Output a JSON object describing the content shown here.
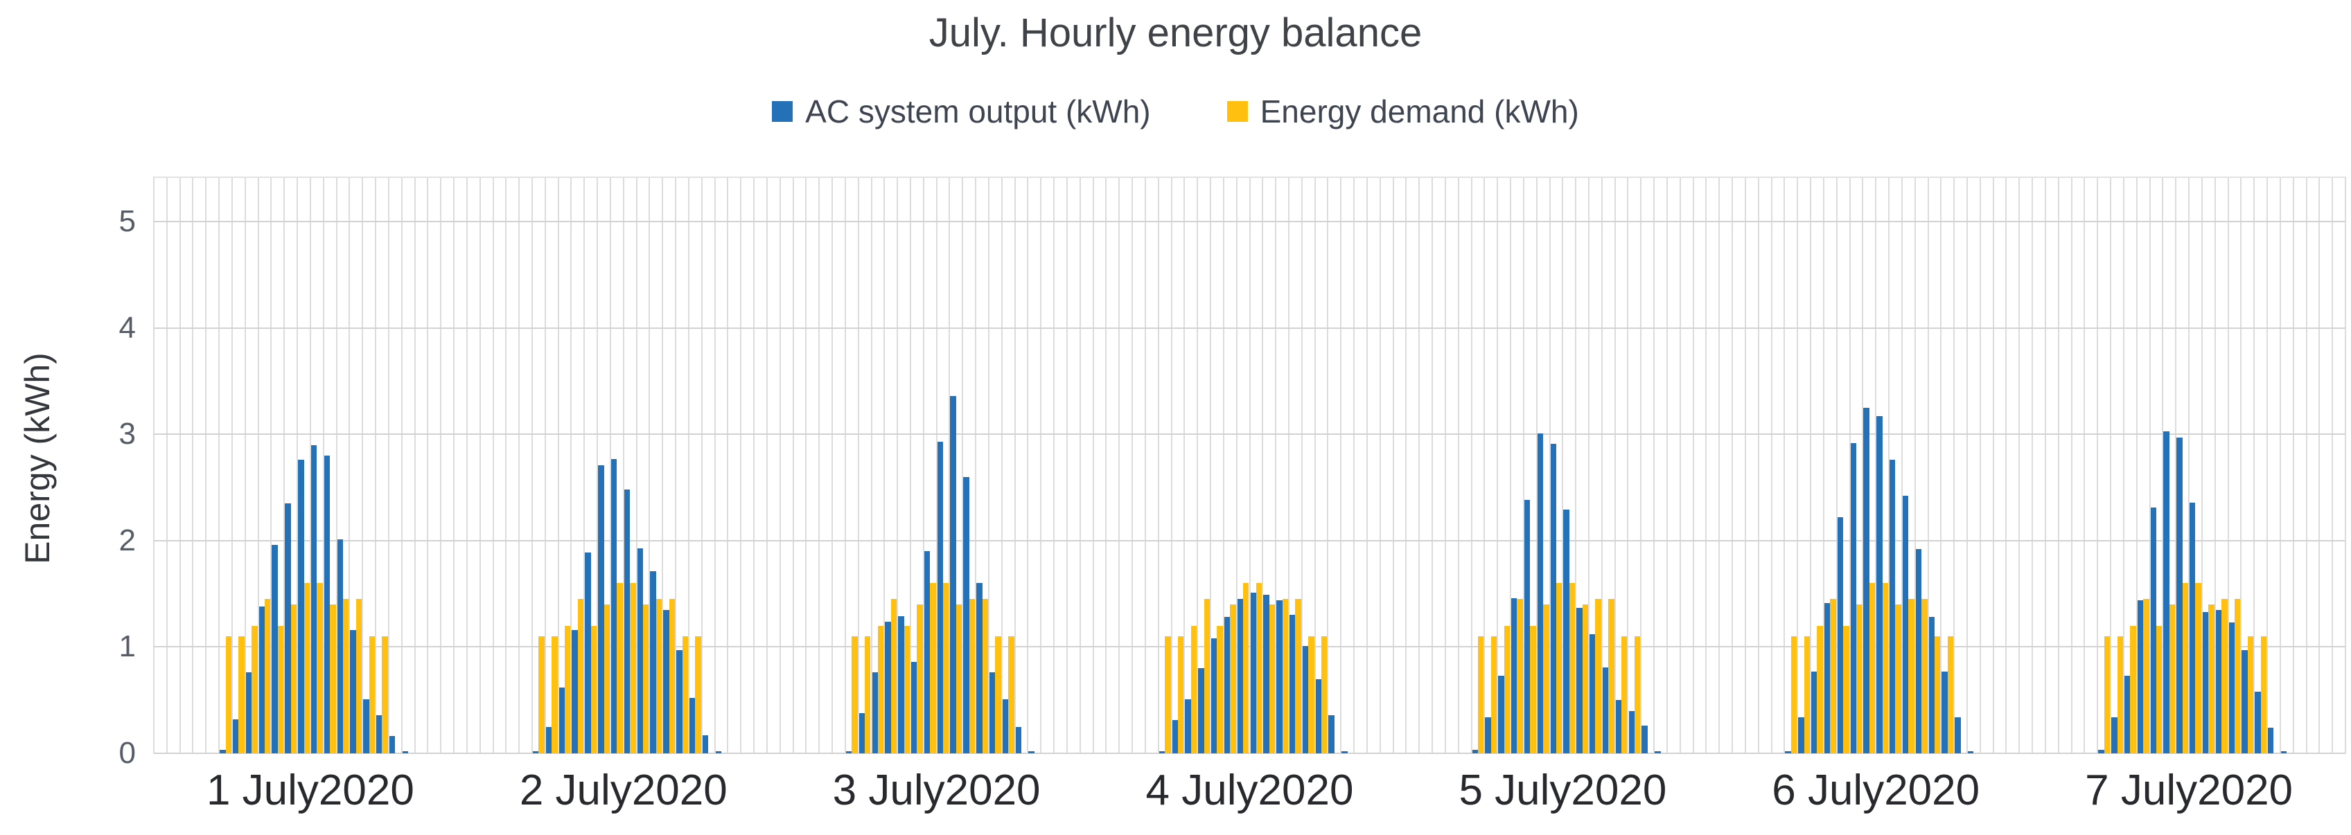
{
  "page": {
    "background": "#FFFFFF"
  },
  "chart": {
    "title": "July. Hourly energy balance",
    "legend": {
      "items": [
        {
          "label": "AC system output (kWh)",
          "color": "#2471B8"
        },
        {
          "label": "Energy demand (kWh)",
          "color": "#FFC010"
        }
      ]
    },
    "y_axis": {
      "title": "Energy (kWh)",
      "tick_labels": [
        "0",
        "1",
        "2",
        "3",
        "4",
        "5"
      ]
    },
    "x_axis": {
      "labels": [
        "1 July2020",
        "2 July2020",
        "3 July2020",
        "4 July2020",
        "5 July2020",
        "6 July2020",
        "7 July2020"
      ]
    }
  },
  "chart_data": {
    "type": "bar",
    "title": "July. Hourly energy balance",
    "xlabel": "",
    "ylabel": "Energy (kWh)",
    "ylim": [
      0,
      5.42
    ],
    "y_ticks": [
      0,
      1,
      2,
      3,
      4,
      5
    ],
    "grid": {
      "vertical": "one line per hour",
      "horizontal": "one line per 1 kWh"
    },
    "legend_position": "top-center",
    "hours_per_day": 24,
    "categories": [
      "1 July2020",
      "2 July2020",
      "3 July2020",
      "4 July2020",
      "5 July2020",
      "6 July2020",
      "7 July2020"
    ],
    "series": [
      {
        "name": "AC system output (kWh)",
        "color": "#2471B8",
        "values_by_day": [
          [
            0,
            0,
            0,
            0,
            0,
            0.03,
            0.32,
            0.76,
            1.38,
            1.96,
            2.35,
            2.76,
            2.9,
            2.8,
            2.01,
            1.16,
            0.51,
            0.36,
            0.16,
            0.02,
            0,
            0,
            0,
            0
          ],
          [
            0,
            0,
            0,
            0,
            0,
            0.02,
            0.25,
            0.62,
            1.16,
            1.89,
            2.71,
            2.77,
            2.48,
            1.93,
            1.71,
            1.35,
            0.97,
            0.52,
            0.17,
            0.02,
            0,
            0,
            0,
            0
          ],
          [
            0,
            0,
            0,
            0,
            0,
            0.02,
            0.38,
            0.76,
            1.24,
            1.29,
            0.86,
            1.9,
            2.93,
            3.36,
            2.6,
            1.6,
            0.76,
            0.51,
            0.25,
            0.02,
            0,
            0,
            0,
            0
          ],
          [
            0,
            0,
            0,
            0,
            0,
            0.02,
            0.31,
            0.51,
            0.8,
            1.08,
            1.28,
            1.45,
            1.51,
            1.49,
            1.44,
            1.3,
            1.01,
            0.7,
            0.36,
            0.02,
            0,
            0,
            0,
            0
          ],
          [
            0,
            0,
            0,
            0,
            0,
            0.03,
            0.34,
            0.73,
            1.46,
            2.38,
            3.01,
            2.91,
            2.29,
            1.37,
            1.12,
            0.81,
            0.5,
            0.4,
            0.26,
            0.02,
            0,
            0,
            0,
            0
          ],
          [
            0,
            0,
            0,
            0,
            0,
            0.02,
            0.34,
            0.77,
            1.41,
            2.22,
            2.92,
            3.25,
            3.17,
            2.76,
            2.42,
            1.92,
            1.28,
            0.77,
            0.34,
            0.02,
            0,
            0,
            0,
            0
          ],
          [
            0,
            0,
            0,
            0,
            0,
            0.03,
            0.34,
            0.73,
            1.44,
            2.31,
            3.03,
            2.97,
            2.36,
            1.33,
            1.35,
            1.23,
            0.97,
            0.58,
            0.24,
            0.02,
            0,
            0,
            0,
            0
          ]
        ]
      },
      {
        "name": "Energy demand (kWh)",
        "color": "#FFC010",
        "values_by_day": [
          [
            0,
            0,
            0,
            0,
            0,
            1.1,
            1.1,
            1.2,
            1.45,
            1.2,
            1.4,
            1.6,
            1.6,
            1.4,
            1.45,
            1.45,
            1.1,
            1.1,
            0,
            0,
            0,
            0,
            0,
            0
          ],
          [
            0,
            0,
            0,
            0,
            0,
            1.1,
            1.1,
            1.2,
            1.45,
            1.2,
            1.4,
            1.6,
            1.6,
            1.4,
            1.45,
            1.45,
            1.1,
            1.1,
            0,
            0,
            0,
            0,
            0,
            0
          ],
          [
            0,
            0,
            0,
            0,
            0,
            1.1,
            1.1,
            1.2,
            1.45,
            1.2,
            1.4,
            1.6,
            1.6,
            1.4,
            1.45,
            1.45,
            1.1,
            1.1,
            0,
            0,
            0,
            0,
            0,
            0
          ],
          [
            0,
            0,
            0,
            0,
            0,
            1.1,
            1.1,
            1.2,
            1.45,
            1.2,
            1.4,
            1.6,
            1.6,
            1.4,
            1.45,
            1.45,
            1.1,
            1.1,
            0,
            0,
            0,
            0,
            0,
            0
          ],
          [
            0,
            0,
            0,
            0,
            0,
            1.1,
            1.1,
            1.2,
            1.45,
            1.2,
            1.4,
            1.6,
            1.6,
            1.4,
            1.45,
            1.45,
            1.1,
            1.1,
            0,
            0,
            0,
            0,
            0,
            0
          ],
          [
            0,
            0,
            0,
            0,
            0,
            1.1,
            1.1,
            1.2,
            1.45,
            1.2,
            1.4,
            1.6,
            1.6,
            1.4,
            1.45,
            1.45,
            1.1,
            1.1,
            0,
            0,
            0,
            0,
            0,
            0
          ],
          [
            0,
            0,
            0,
            0,
            0,
            1.1,
            1.1,
            1.2,
            1.45,
            1.2,
            1.4,
            1.6,
            1.6,
            1.4,
            1.45,
            1.45,
            1.1,
            1.1,
            0,
            0,
            0,
            0,
            0,
            0
          ]
        ]
      }
    ]
  }
}
